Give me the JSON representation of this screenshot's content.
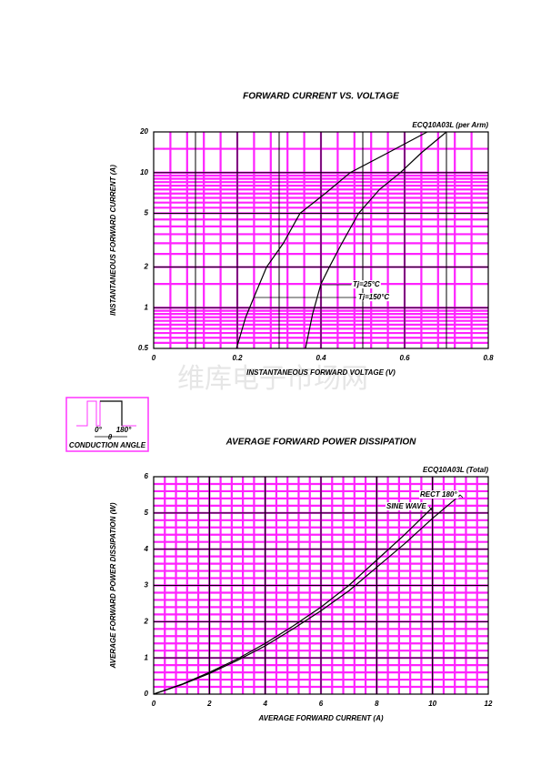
{
  "chart_data": [
    {
      "type": "line",
      "title": "FORWARD CURRENT VS. VOLTAGE",
      "subtitle": "ECQ10A03L (per Arm)",
      "x_label": "INSTANTANEOUS FORWARD VOLTAGE (V)",
      "y_label": "INSTANTANEOUS FORWARD CURRENT (A)",
      "xlim": [
        0,
        0.8
      ],
      "xticks": [
        0,
        0.2,
        0.4,
        0.6,
        0.8
      ],
      "ylim": [
        0.5,
        20
      ],
      "yticks": [
        0.5,
        1,
        2,
        5,
        10,
        20
      ],
      "y_log": true,
      "grid": true,
      "series": [
        {
          "name": "Tj=25°C",
          "color": "#000000",
          "x": [
            0.363,
            0.38,
            0.4,
            0.42,
            0.45,
            0.49,
            0.54,
            0.59,
            0.64,
            0.7
          ],
          "values": [
            0.5,
            0.9,
            1.5,
            2,
            3,
            5,
            7.5,
            10,
            14,
            20
          ]
        },
        {
          "name": "Tj=150°C",
          "color": "#000000",
          "x": [
            0.198,
            0.22,
            0.24,
            0.27,
            0.31,
            0.35,
            0.41,
            0.47,
            0.56,
            0.654
          ],
          "values": [
            0.5,
            0.85,
            1.2,
            2,
            3,
            5,
            7,
            10,
            14,
            20
          ]
        }
      ]
    },
    {
      "type": "line",
      "title": "AVERAGE FORWARD POWER DISSIPATION",
      "subtitle": "ECQ10A03L (Total)",
      "x_label": "AVERAGE FORWARD CURRENT (A)",
      "y_label": "AVERAGE FORWARD POWER DISSIPATION (W)",
      "xlim": [
        0,
        12
      ],
      "xticks": [
        0,
        2,
        4,
        6,
        8,
        10,
        12
      ],
      "ylim": [
        0,
        6
      ],
      "yticks": [
        0,
        1,
        2,
        3,
        4,
        5,
        6
      ],
      "y_log": false,
      "grid": true,
      "x": [
        0,
        1,
        2,
        3,
        4,
        5,
        6,
        7,
        8,
        9,
        10,
        11
      ],
      "series": [
        {
          "name": "RECT 180°",
          "color": "#000000",
          "values": [
            0,
            0.26,
            0.57,
            0.93,
            1.33,
            1.8,
            2.3,
            2.85,
            3.5,
            4.15,
            4.85,
            5.5
          ]
        },
        {
          "name": "SINE WAVE",
          "color": "#000000",
          "values": [
            0,
            0.27,
            0.6,
            0.97,
            1.4,
            1.88,
            2.4,
            3.0,
            3.7,
            4.4,
            5.15,
            null
          ]
        }
      ]
    }
  ],
  "inset": {
    "start": "0°",
    "end": "180°",
    "angle": "θ",
    "caption": "CONDUCTION ANGLE"
  },
  "watermark": "维库电子市场网"
}
